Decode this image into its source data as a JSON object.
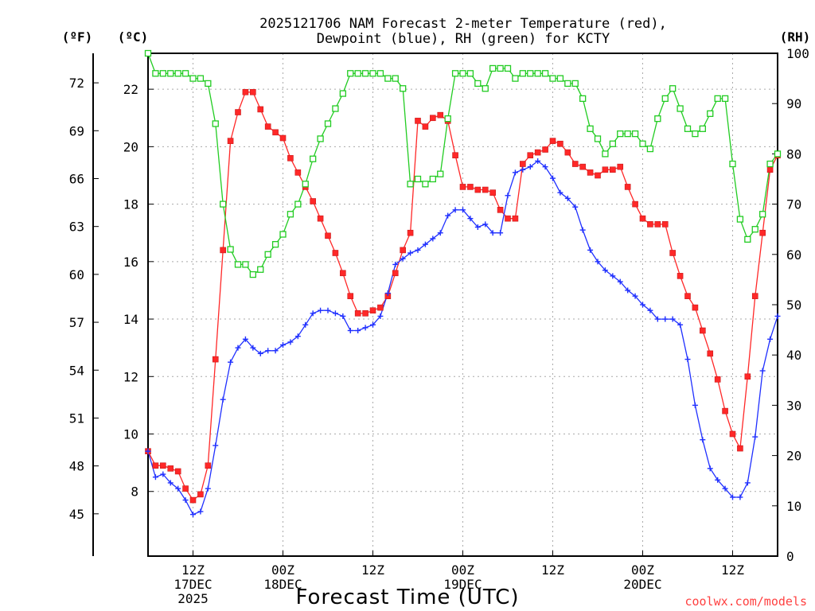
{
  "chart_data": {
    "type": "line",
    "title_lines": [
      "2025121706 NAM Forecast 2-meter Temperature (red),",
      "Dewpoint (blue), RH (green) for KCTY"
    ],
    "left_outer_axis": {
      "unit": "(ºF)",
      "ticks": [
        "45",
        "48",
        "51",
        "54",
        "57",
        "60",
        "63",
        "66",
        "69",
        "72"
      ]
    },
    "left_inner_axis": {
      "unit": "(ºC)",
      "ylim": [
        5.75,
        23.25
      ],
      "ticks": [
        8,
        10,
        12,
        14,
        16,
        18,
        20,
        22
      ]
    },
    "right_axis": {
      "unit": "(RH)",
      "ylim": [
        0,
        100
      ],
      "ticks": [
        0,
        10,
        20,
        30,
        40,
        50,
        60,
        70,
        80,
        90,
        100
      ]
    },
    "xlabel": "Forecast Time (UTC)",
    "xlim_hours": [
      0,
      84
    ],
    "x_ticks": [
      {
        "hour": 6,
        "lines": [
          "12Z",
          "17DEC",
          "2025"
        ]
      },
      {
        "hour": 18,
        "lines": [
          "00Z",
          "18DEC"
        ]
      },
      {
        "hour": 30,
        "lines": [
          "12Z"
        ]
      },
      {
        "hour": 42,
        "lines": [
          "00Z",
          "19DEC"
        ]
      },
      {
        "hour": 54,
        "lines": [
          "12Z"
        ]
      },
      {
        "hour": 66,
        "lines": [
          "00Z",
          "20DEC"
        ]
      },
      {
        "hour": 78,
        "lines": [
          "12Z"
        ]
      }
    ],
    "credit": "coolwx.com/models",
    "series": [
      {
        "name": "2-meter Temperature",
        "units": "°C",
        "color": "#ff2828",
        "marker": "filled-square",
        "values": [
          9.4,
          8.9,
          8.9,
          8.8,
          8.7,
          8.1,
          7.7,
          7.9,
          8.9,
          12.6,
          16.4,
          20.2,
          21.2,
          21.9,
          21.9,
          21.3,
          20.7,
          20.5,
          20.3,
          19.6,
          19.1,
          18.6,
          18.1,
          17.5,
          16.9,
          16.3,
          15.6,
          14.8,
          14.2,
          14.2,
          14.3,
          14.4,
          14.8,
          15.6,
          16.4,
          17.0,
          20.9,
          20.7,
          21.0,
          21.1,
          20.9,
          19.7,
          18.6,
          18.6,
          18.5,
          18.5,
          18.4,
          17.8,
          17.5,
          17.5,
          19.4,
          19.7,
          19.8,
          19.9,
          20.2,
          20.1,
          19.8,
          19.4,
          19.3,
          19.1,
          19.0,
          19.2,
          19.2,
          19.3,
          18.6,
          18.0,
          17.5,
          17.3,
          17.3,
          17.3,
          16.3,
          15.5,
          14.8,
          14.4,
          13.6,
          12.8,
          11.9,
          10.8,
          10.0,
          9.5,
          12.0,
          14.8,
          17.0,
          19.2,
          19.7
        ]
      },
      {
        "name": "Dewpoint",
        "units": "°C",
        "color": "#2030ff",
        "marker": "plus",
        "values": [
          9.4,
          8.5,
          8.6,
          8.3,
          8.1,
          7.7,
          7.2,
          7.3,
          8.1,
          9.6,
          11.2,
          12.5,
          13.0,
          13.3,
          13.0,
          12.8,
          12.9,
          12.9,
          13.1,
          13.2,
          13.4,
          13.8,
          14.2,
          14.3,
          14.3,
          14.2,
          14.1,
          13.6,
          13.6,
          13.7,
          13.8,
          14.1,
          14.9,
          15.9,
          16.1,
          16.3,
          16.4,
          16.6,
          16.8,
          17.0,
          17.6,
          17.8,
          17.8,
          17.5,
          17.2,
          17.3,
          17.0,
          17.0,
          18.3,
          19.1,
          19.2,
          19.3,
          19.5,
          19.3,
          18.9,
          18.4,
          18.2,
          17.9,
          17.1,
          16.4,
          16.0,
          15.7,
          15.5,
          15.3,
          15.0,
          14.8,
          14.5,
          14.3,
          14.0,
          14.0,
          14.0,
          13.8,
          12.6,
          11.0,
          9.8,
          8.8,
          8.4,
          8.1,
          7.8,
          7.8,
          8.3,
          9.9,
          12.2,
          13.3,
          14.1
        ]
      },
      {
        "name": "RH",
        "units": "%",
        "color": "#22cc22",
        "marker": "open-square",
        "values": [
          100,
          96,
          96,
          96,
          96,
          96,
          95,
          95,
          94,
          86,
          70,
          61,
          58,
          58,
          56,
          57,
          60,
          62,
          64,
          68,
          70,
          74,
          79,
          83,
          86,
          89,
          92,
          96,
          96,
          96,
          96,
          96,
          95,
          95,
          93,
          74,
          75,
          74,
          75,
          76,
          87,
          96,
          96,
          96,
          94,
          93,
          97,
          97,
          97,
          95,
          96,
          96,
          96,
          96,
          95,
          95,
          94,
          94,
          91,
          85,
          83,
          80,
          82,
          84,
          84,
          84,
          82,
          81,
          87,
          91,
          93,
          89,
          85,
          84,
          85,
          88,
          91,
          91,
          78,
          67,
          63,
          65,
          68,
          78,
          80
        ]
      }
    ]
  }
}
